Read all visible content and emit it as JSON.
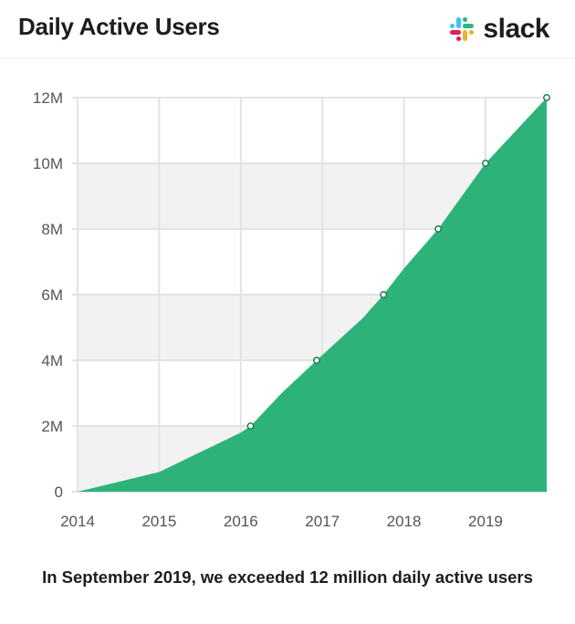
{
  "header": {
    "title": "Daily Active Users",
    "brand": "slack",
    "logo_icon": "slack-hash-icon"
  },
  "colors": {
    "area": "#2db37a",
    "band": "#f2f2f2",
    "grid": "#e3e3e3",
    "marker_fill": "#ffffff",
    "marker_stroke": "#1f7a50",
    "logo": [
      "#e01e5a",
      "#36c5f0",
      "#2eb67d",
      "#ecb22e"
    ]
  },
  "chart_data": {
    "type": "area",
    "title": "Daily Active Users",
    "x": [
      2014.0,
      2015.0,
      2015.5,
      2016.0,
      2016.12,
      2016.5,
      2016.93,
      2017.5,
      2017.75,
      2018.0,
      2018.42,
      2019.0,
      2019.75
    ],
    "y": [
      0,
      0.6,
      1.2,
      1.8,
      2.0,
      3.0,
      4.0,
      5.3,
      6.0,
      6.8,
      8.0,
      10.0,
      12.0
    ],
    "markers": [
      {
        "x": 2016.12,
        "y": 2.0
      },
      {
        "x": 2016.93,
        "y": 4.0
      },
      {
        "x": 2017.75,
        "y": 6.0
      },
      {
        "x": 2018.42,
        "y": 8.0
      },
      {
        "x": 2019.0,
        "y": 10.0
      },
      {
        "x": 2019.75,
        "y": 12.0
      }
    ],
    "xlim": [
      2014,
      2019.75
    ],
    "ylim": [
      0,
      12
    ],
    "x_ticks": [
      2014,
      2015,
      2016,
      2017,
      2018,
      2019
    ],
    "y_ticks": [
      0,
      2,
      4,
      6,
      8,
      10,
      12
    ],
    "y_tick_labels": [
      "0",
      "2M",
      "4M",
      "6M",
      "8M",
      "10M",
      "12M"
    ],
    "grid": true,
    "xlabel": "",
    "ylabel": ""
  },
  "caption": "In September 2019, we exceeded 12 million daily active users"
}
